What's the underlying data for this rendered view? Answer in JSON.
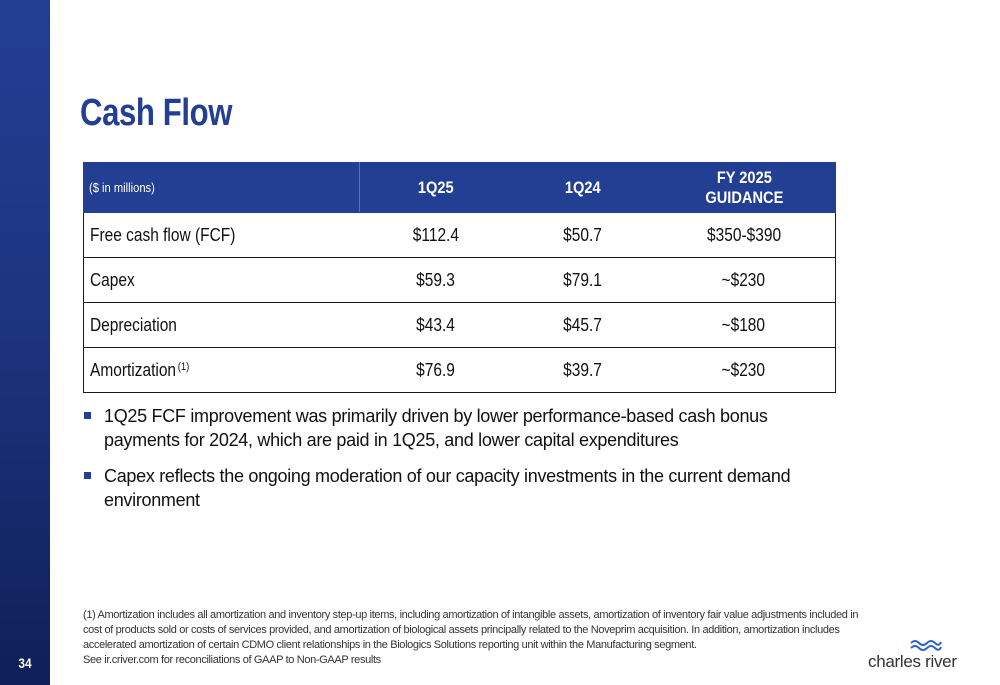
{
  "slide": {
    "page_number": "34",
    "title": "Cash Flow",
    "table": {
      "headers": [
        "($ in millions)",
        "1Q25",
        "1Q24",
        "FY 2025\nGUIDANCE"
      ],
      "rows": [
        {
          "label": "Free cash flow  (FCF)",
          "q1_25": "$112.4",
          "q1_24": "$50.7",
          "guidance": "$350-$390"
        },
        {
          "label": "Capex",
          "q1_25": "$59.3",
          "q1_24": "$79.1",
          "guidance": "~$230"
        },
        {
          "label": "Depreciation",
          "q1_25": "$43.4",
          "q1_24": "$45.7",
          "guidance": "~$180"
        },
        {
          "label": "Amortization",
          "footnote_ref": "(1)",
          "q1_25": "$76.9",
          "q1_24": "$39.7",
          "guidance": "~$230"
        }
      ]
    },
    "bullets": [
      "1Q25 FCF improvement was primarily driven by lower performance-based cash bonus payments for 2024, which are paid in 1Q25, and lower capital expenditures",
      "Capex reflects the ongoing moderation of our capacity investments in the current demand environment"
    ],
    "footnote": "(1) Amortization includes all amortization and inventory step-up items, including amortization of intangible assets, amortization of inventory fair value adjustments included in cost of products sold or costs of services provided, and amortization of biological assets principally related to the Noveprim acquisition. In addition, amortization includes accelerated amortization of certain CDMO client relationships in the Biologics Solutions reporting unit within the Manufacturing segment.",
    "reconciliation_note": "See ir.criver.com for reconciliations of GAAP to Non-GAAP results",
    "logo_text": "charles river"
  },
  "colors": {
    "brand_blue": "#233f94",
    "sidebar_dark": "#0f1f58",
    "text": "#111111"
  },
  "icons": {
    "logo_mark": "charles-river-wave-icon",
    "bullet": "square-bullet-icon"
  }
}
